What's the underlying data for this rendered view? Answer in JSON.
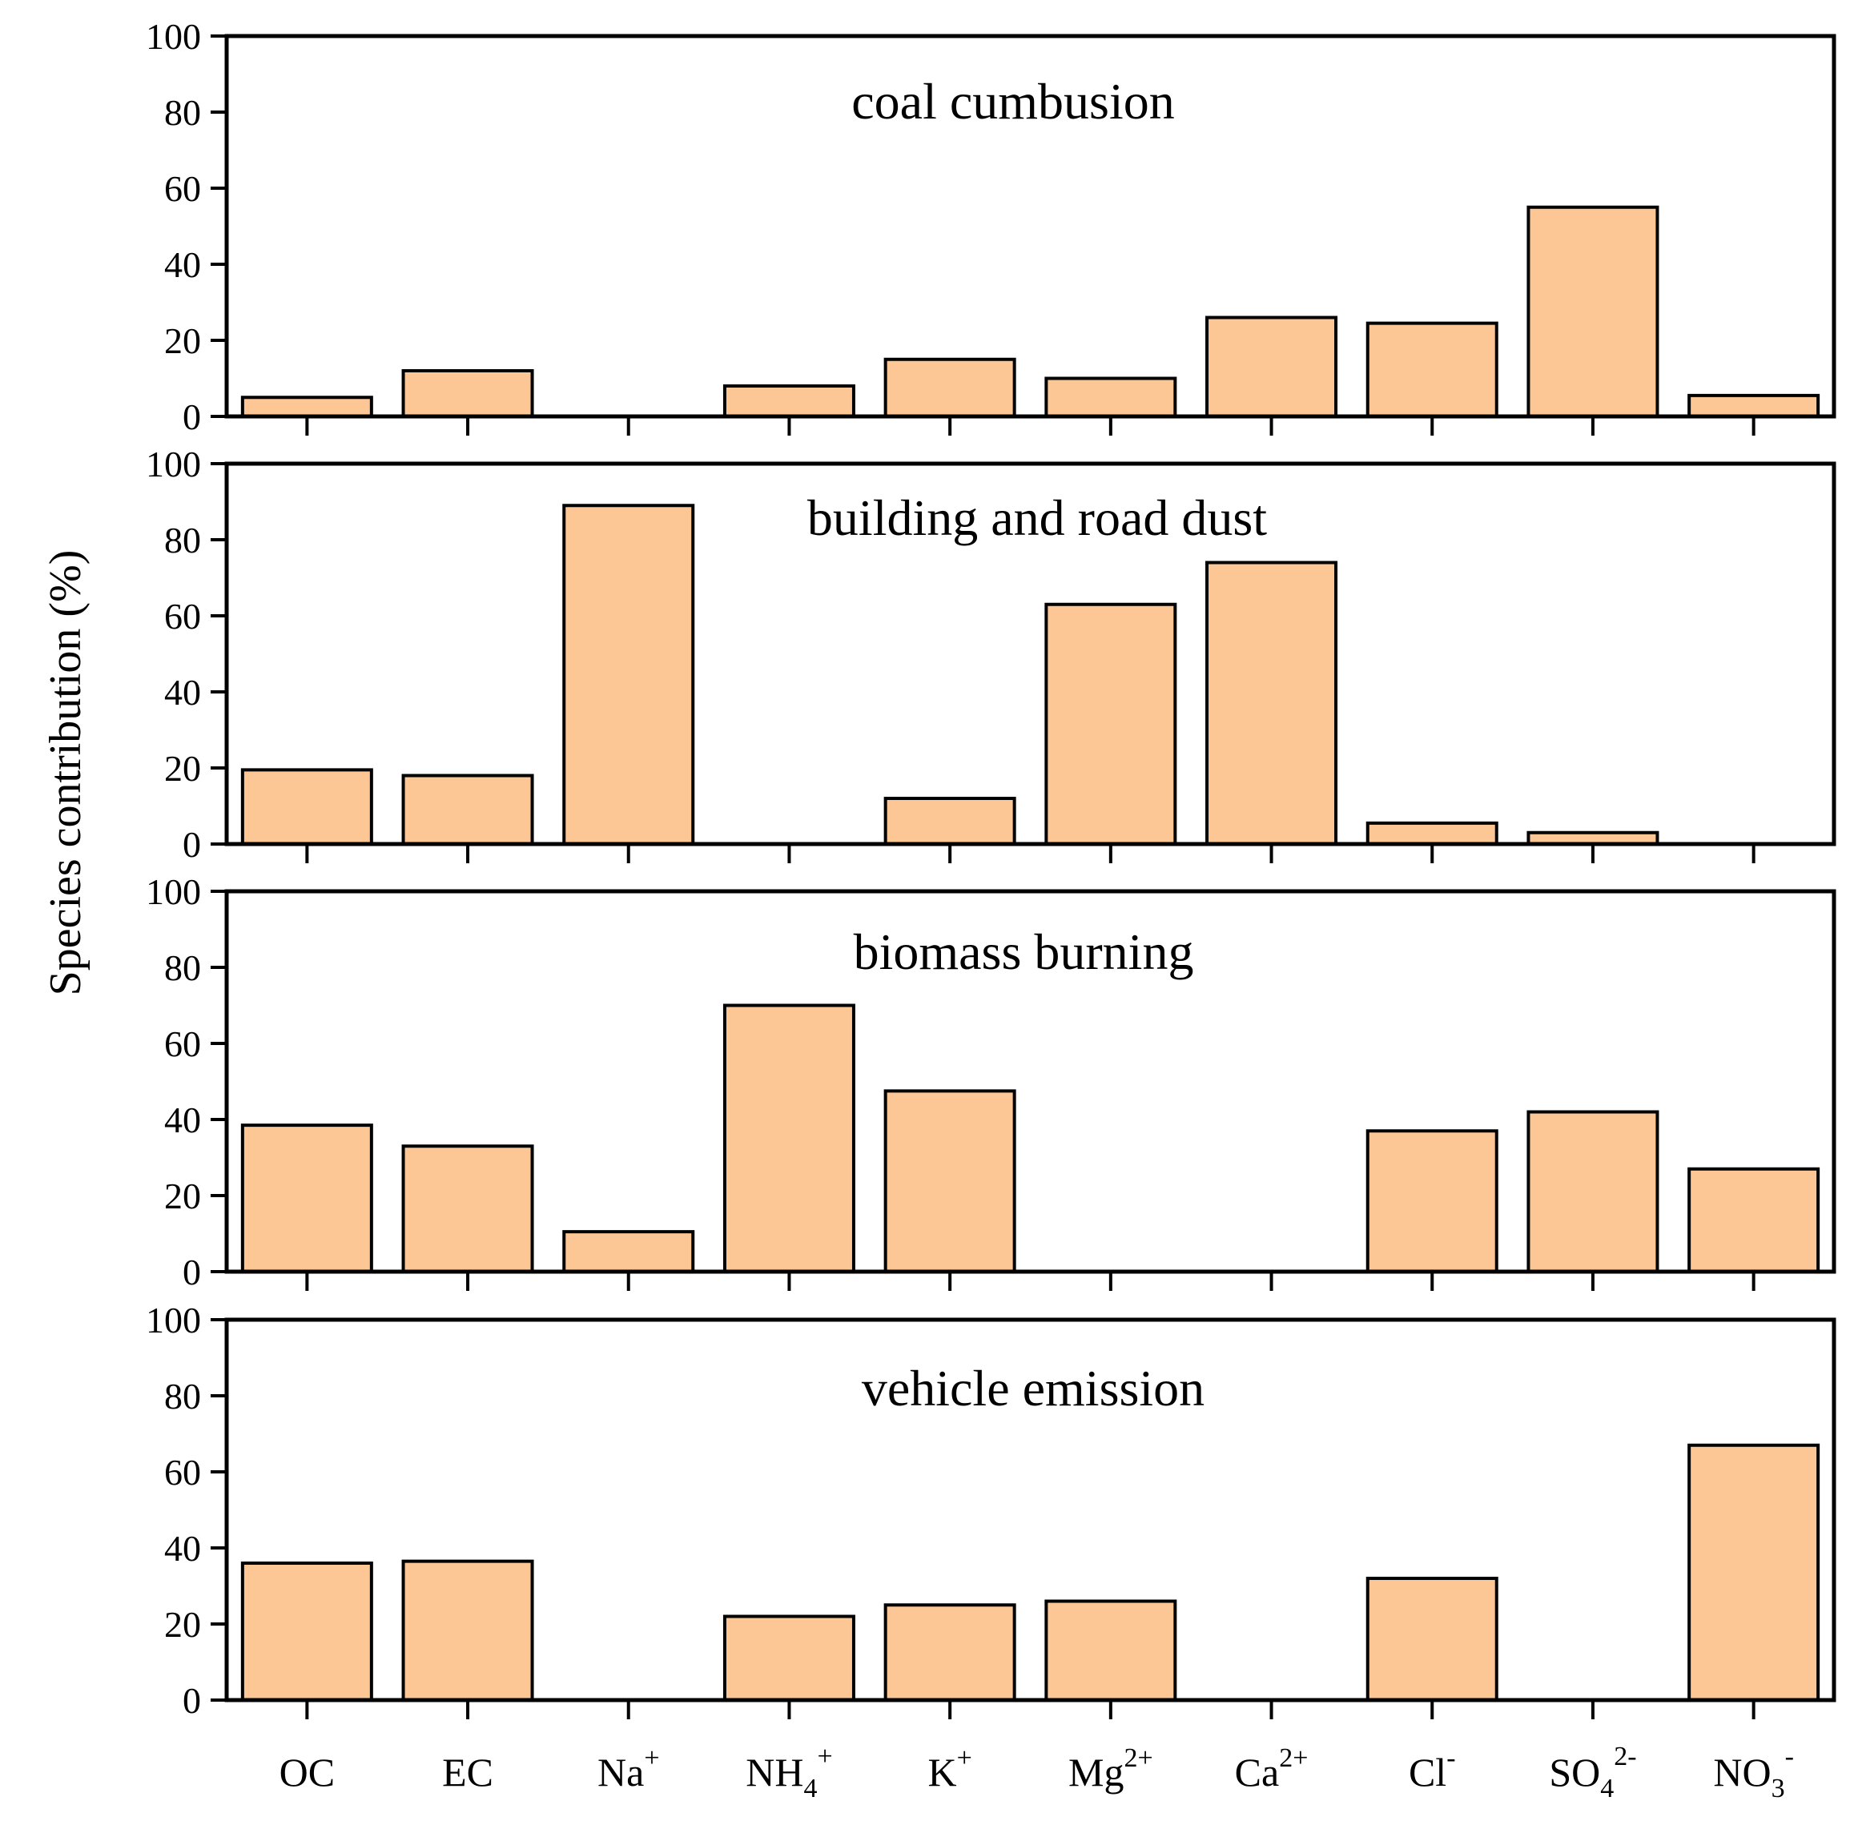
{
  "chart_data": {
    "type": "bar",
    "ylabel": "Species contribution (%)",
    "ylim": [
      0,
      100
    ],
    "yticks": [
      0,
      20,
      40,
      60,
      80,
      100
    ],
    "categories": [
      "OC",
      "EC",
      "Na+",
      "NH4+",
      "K+",
      "Mg2+",
      "Ca2+",
      "Cl-",
      "SO42-",
      "NO3-"
    ],
    "category_labels": [
      {
        "base": "OC",
        "sub": "",
        "sup": ""
      },
      {
        "base": "EC",
        "sub": "",
        "sup": ""
      },
      {
        "base": "Na",
        "sub": "",
        "sup": "+"
      },
      {
        "base": "NH",
        "sub": "4",
        "sup": "+"
      },
      {
        "base": "K",
        "sub": "",
        "sup": "+"
      },
      {
        "base": "Mg",
        "sub": "",
        "sup": "2+"
      },
      {
        "base": "Ca",
        "sub": "",
        "sup": "2+"
      },
      {
        "base": "Cl",
        "sub": "",
        "sup": "-"
      },
      {
        "base": "SO",
        "sub": "4",
        "sup": "2-"
      },
      {
        "base": "NO",
        "sub": "3",
        "sup": "-"
      }
    ],
    "bar_color": "#FDC795",
    "panels": [
      {
        "title": "coal cumbusion",
        "values": [
          5,
          12,
          0,
          8,
          15,
          10,
          26,
          24.5,
          55,
          5.5
        ]
      },
      {
        "title": "building and road dust",
        "values": [
          19.5,
          18,
          89,
          0,
          12,
          63,
          74,
          5.5,
          3,
          0
        ]
      },
      {
        "title": "biomass burning",
        "values": [
          38.5,
          33,
          10.5,
          70,
          47.5,
          0,
          0,
          37,
          42,
          27
        ]
      },
      {
        "title": "vehicle emission",
        "values": [
          36,
          36.5,
          0,
          22,
          25,
          26,
          0,
          32,
          0,
          67
        ]
      }
    ]
  }
}
